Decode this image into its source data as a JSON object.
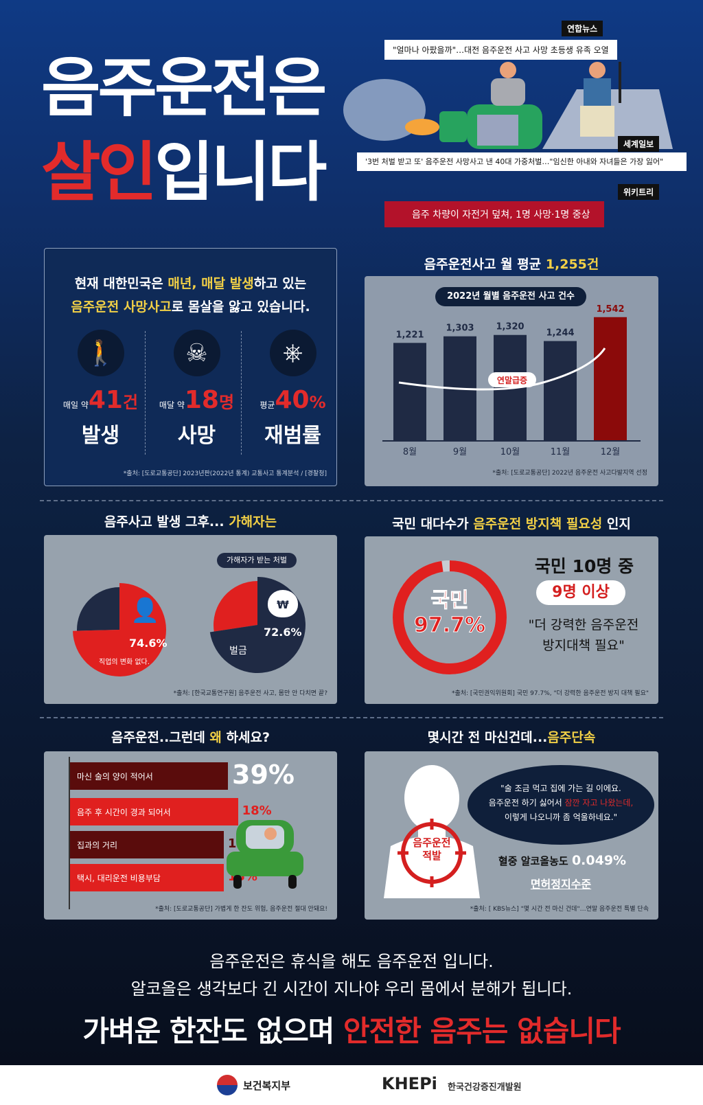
{
  "title": {
    "line1": "음주운전은",
    "line2_red": "살인",
    "line2_rest": "입니다"
  },
  "news": [
    {
      "source": "연합뉴스",
      "headline": "\"얼마나 아팠을까\"…대전 음주운전 사고 사망 초등생 유족 오열"
    },
    {
      "source": "세계일보",
      "headline": "'3번 처벌 받고 또' 음주운전 사망사고 낸 40대 가중처벌…\"임신한 아내와 자녀들은 가장 잃어\""
    },
    {
      "source": "위키트리",
      "headline": "음주 차량이 자전거 덮쳐, 1명 사망·1명 중상"
    }
  ],
  "intro": {
    "l1a": "현재 대한민국은 ",
    "l1b": "매년, 매달 발생",
    "l1c": "하고 있는",
    "l2a": "음주운전 사망사고",
    "l2b": "로 몸살을 앓고 있습니다."
  },
  "stats": [
    {
      "icon": "falling-person-icon",
      "prefix": "매일 약",
      "value": "41",
      "unit": "건",
      "label": "발생"
    },
    {
      "icon": "skull-icon",
      "prefix": "매달 약",
      "value": "18",
      "unit": "명",
      "label": "사망"
    },
    {
      "icon": "steering-wheel-icon",
      "prefix": "평균",
      "value": "40",
      "unit": "%",
      "label": "재범률"
    }
  ],
  "source1": "*출처: [도로교통공단] 2023년판(2022년 통계) 교통사고 통계분석 / [경찰청]",
  "chart_section": {
    "heading_a": "음주운전사고 월 평균 ",
    "heading_b": "1,255건",
    "source": "*출처: [도로교통공단] 2022년 음주운전 사고다발지역 선정",
    "annotation": "연말급증"
  },
  "chart_data": {
    "type": "bar",
    "title": "2022년 월별 음주운전 사고 건수",
    "categories": [
      "8월",
      "9월",
      "10월",
      "11월",
      "12월"
    ],
    "values": [
      1221,
      1303,
      1320,
      1244,
      1542
    ],
    "labels": [
      "1,221",
      "1,303",
      "1,320",
      "1,244",
      "1,542"
    ],
    "colors": {
      "normal": "#1f2a44",
      "highlight": "#8b0a0a"
    }
  },
  "perp": {
    "heading_a": "음주사고 발생 그후... ",
    "heading_b": "가해자는",
    "pie1": {
      "percent": 74.6,
      "label": "74.6%",
      "caption": "직업의 변화 없다.",
      "icon": "person-tie-icon"
    },
    "pill": "가해자가 받는 처벌",
    "pie2": {
      "percent": 72.6,
      "label": "72.6%",
      "caption": "벌금",
      "icon": "money-bag-icon"
    },
    "source": "*출처: [한국교통연구원] 음주운전 사고, 몸만 안 다치면 끝?"
  },
  "public": {
    "heading_a": "국민 대다수가 ",
    "heading_b": "음주운전 방지책 필요성",
    "heading_c": " 인지",
    "ring_percent": 97.7,
    "ring_l1": "국민",
    "ring_l2": "97.7%",
    "t1": "국민 10명 중",
    "t2": "9명 이상",
    "q1": "\"더 강력한 음주운전",
    "q2": "방지대책 필요\"",
    "source": "*출처: [국민권익위원회] 국민 97.7%, \"더 강력한 음주운전 방지 대책 필요\""
  },
  "why": {
    "heading_a": "음주운전..그런데 ",
    "heading_b": "왜",
    "heading_c": " 하세요?",
    "items": [
      {
        "label": "마신 술의 양이 적어서",
        "value": 39,
        "text": "39%"
      },
      {
        "label": "음주 후 시간이 경과 되어서",
        "value": 18,
        "text": "18%"
      },
      {
        "label": "집과의 거리",
        "value": 15,
        "text": "15%"
      },
      {
        "label": "택시, 대리운전 비용부담",
        "value": 15,
        "text": "15%"
      }
    ],
    "source": "*출처: [도로교통공단] 가볍게 한 잔도 위험, 음주운전 절대 안돼요!"
  },
  "crack": {
    "heading_a": "몇시간 전 마신건데...",
    "heading_b": "음주단속",
    "target_l1": "음주운전",
    "target_l2": "적발",
    "q1": "\"술 조금 먹고 집에 가는 길 이에요.",
    "q2a": "음주운전 하기 싫어서 ",
    "q2b": "잠깐 자고 나왔는데,",
    "q3": "이렇게 나오니까 좀 억울하네요.\"",
    "bac_label": "혈중 알코올농도 ",
    "bac_value": "0.049%",
    "bac_note": "면허정지수준",
    "source": "*출처: [ KBS뉴스] \"몇 시간 전 마신 건데\"…연말 음주운전 특별 단속"
  },
  "bottom": {
    "l1": "음주운전은 휴식을 해도 음주운전 입니다.",
    "l2": "알코올은 생각보다 긴 시간이 지나야 우리 몸에서 분해가 됩니다.",
    "l3a": "가벼운 한잔도 없으며 ",
    "l3b": "안전한 음주는 없습니다"
  },
  "footer": {
    "org1": "보건복지부",
    "org2_logo": "KHEPi",
    "org2": "한국건강증진개발원"
  }
}
